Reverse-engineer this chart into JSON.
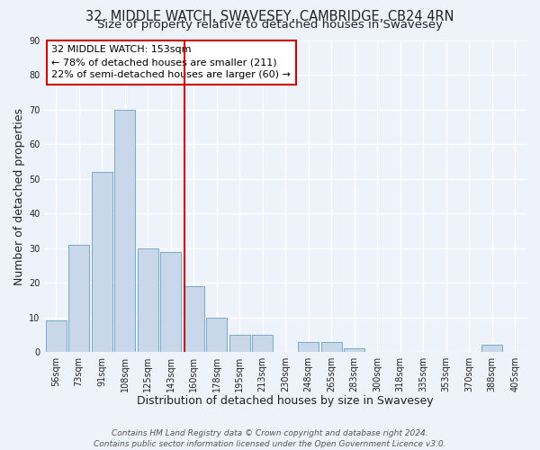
{
  "title": "32, MIDDLE WATCH, SWAVESEY, CAMBRIDGE, CB24 4RN",
  "subtitle": "Size of property relative to detached houses in Swavesey",
  "xlabel": "Distribution of detached houses by size in Swavesey",
  "ylabel": "Number of detached properties",
  "bar_color": "#c8d8ea",
  "bar_edgecolor": "#7aaac8",
  "background_color": "#eef2fb",
  "grid_color": "#ffffff",
  "categories": [
    "56sqm",
    "73sqm",
    "91sqm",
    "108sqm",
    "125sqm",
    "143sqm",
    "160sqm",
    "178sqm",
    "195sqm",
    "213sqm",
    "230sqm",
    "248sqm",
    "265sqm",
    "283sqm",
    "300sqm",
    "318sqm",
    "335sqm",
    "353sqm",
    "370sqm",
    "388sqm",
    "405sqm"
  ],
  "values": [
    9,
    31,
    52,
    70,
    30,
    29,
    19,
    10,
    5,
    5,
    0,
    3,
    3,
    1,
    0,
    0,
    0,
    0,
    0,
    2,
    0
  ],
  "ylim": [
    0,
    90
  ],
  "yticks": [
    0,
    10,
    20,
    30,
    40,
    50,
    60,
    70,
    80,
    90
  ],
  "vline_x": 5.59,
  "vline_color": "#cc0000",
  "annotation_line1": "32 MIDDLE WATCH: 153sqm",
  "annotation_line2": "← 78% of detached houses are smaller (211)",
  "annotation_line3": "22% of semi-detached houses are larger (60) →",
  "footer_line1": "Contains HM Land Registry data © Crown copyright and database right 2024.",
  "footer_line2": "Contains public sector information licensed under the Open Government Licence v3.0.",
  "title_fontsize": 10.5,
  "subtitle_fontsize": 9.5,
  "xlabel_fontsize": 9,
  "ylabel_fontsize": 9,
  "tick_fontsize": 7,
  "annotation_fontsize": 8,
  "footer_fontsize": 6.5
}
